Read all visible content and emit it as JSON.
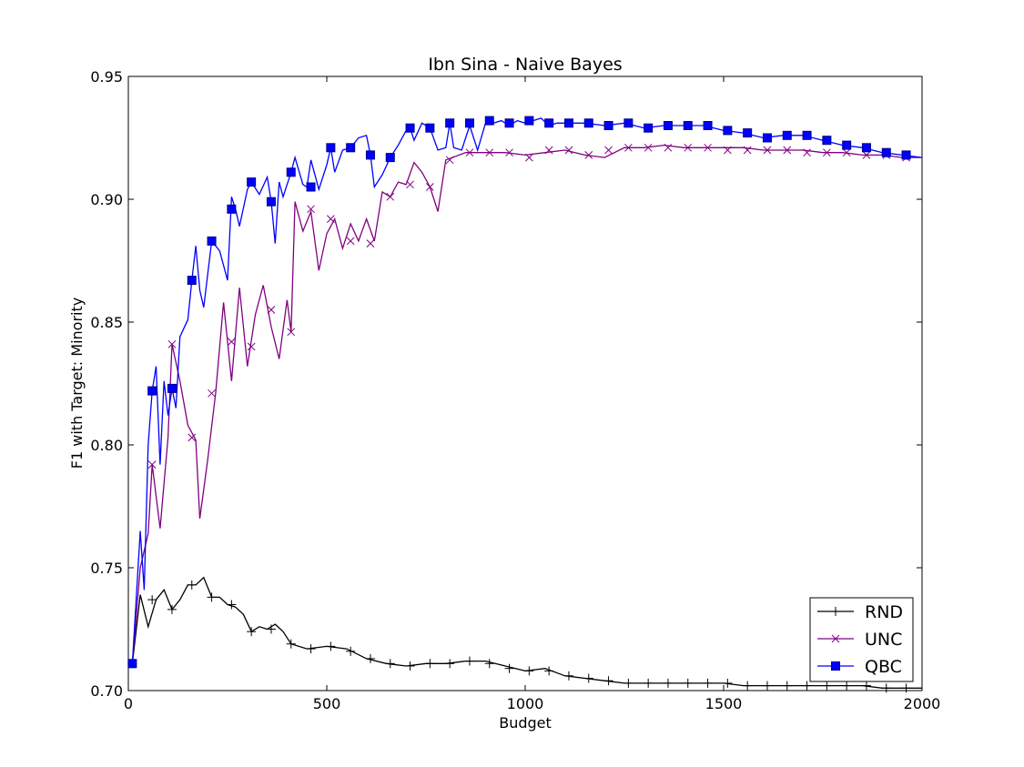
{
  "chart_data": {
    "type": "line",
    "title": "Ibn Sina - Naive Bayes",
    "xlabel": "Budget",
    "ylabel": "F1 with Target: Minority",
    "xlim": [
      0,
      2000
    ],
    "ylim": [
      0.7,
      0.95
    ],
    "xticks": [
      0,
      500,
      1000,
      1500,
      2000
    ],
    "xtick_labels": [
      "0",
      "500",
      "1000",
      "1500",
      "2000"
    ],
    "yticks": [
      0.7,
      0.75,
      0.8,
      0.85,
      0.9,
      0.95
    ],
    "ytick_labels": [
      "0.70",
      "0.75",
      "0.80",
      "0.85",
      "0.90",
      "0.95"
    ],
    "grid": false,
    "legend_position": "lower-right",
    "series": [
      {
        "name": "RND",
        "color": "#000000",
        "marker": "plus",
        "x": [
          10,
          30,
          50,
          70,
          90,
          110,
          130,
          150,
          170,
          190,
          210,
          230,
          250,
          270,
          290,
          310,
          330,
          350,
          370,
          390,
          410,
          450,
          500,
          550,
          600,
          650,
          700,
          750,
          800,
          850,
          900,
          950,
          1000,
          1050,
          1100,
          1150,
          1200,
          1250,
          1300,
          1350,
          1400,
          1450,
          1500,
          1550,
          1600,
          1650,
          1700,
          1750,
          1800,
          1850,
          1900,
          1950,
          2000
        ],
        "y": [
          0.711,
          0.739,
          0.726,
          0.737,
          0.741,
          0.733,
          0.737,
          0.743,
          0.743,
          0.746,
          0.738,
          0.738,
          0.735,
          0.734,
          0.731,
          0.724,
          0.726,
          0.725,
          0.727,
          0.724,
          0.719,
          0.717,
          0.718,
          0.717,
          0.713,
          0.711,
          0.71,
          0.711,
          0.711,
          0.712,
          0.712,
          0.71,
          0.708,
          0.709,
          0.706,
          0.705,
          0.704,
          0.703,
          0.703,
          0.703,
          0.703,
          0.703,
          0.703,
          0.702,
          0.702,
          0.702,
          0.702,
          0.702,
          0.702,
          0.702,
          0.701,
          0.701,
          0.701
        ],
        "marker_x": [
          10,
          60,
          110,
          160,
          210,
          260,
          310,
          360,
          410,
          460,
          510,
          560,
          610,
          660,
          710,
          760,
          810,
          860,
          910,
          960,
          1010,
          1060,
          1110,
          1160,
          1210,
          1260,
          1310,
          1360,
          1410,
          1460,
          1510,
          1560,
          1610,
          1660,
          1710,
          1760,
          1810,
          1860,
          1910,
          1960
        ],
        "marker_y": [
          0.711,
          0.737,
          0.733,
          0.743,
          0.738,
          0.735,
          0.724,
          0.725,
          0.719,
          0.717,
          0.718,
          0.716,
          0.713,
          0.711,
          0.71,
          0.711,
          0.711,
          0.712,
          0.711,
          0.709,
          0.708,
          0.708,
          0.706,
          0.705,
          0.704,
          0.703,
          0.703,
          0.703,
          0.703,
          0.703,
          0.703,
          0.702,
          0.702,
          0.702,
          0.702,
          0.702,
          0.702,
          0.702,
          0.701,
          0.701
        ]
      },
      {
        "name": "UNC",
        "color": "#800080",
        "marker": "x",
        "x": [
          10,
          30,
          50,
          60,
          80,
          100,
          110,
          130,
          150,
          170,
          180,
          200,
          220,
          240,
          260,
          280,
          300,
          320,
          340,
          360,
          380,
          400,
          410,
          420,
          440,
          460,
          480,
          500,
          520,
          540,
          560,
          580,
          600,
          620,
          640,
          660,
          680,
          700,
          720,
          740,
          760,
          780,
          800,
          850,
          900,
          950,
          1000,
          1050,
          1100,
          1150,
          1200,
          1250,
          1300,
          1350,
          1400,
          1450,
          1500,
          1550,
          1600,
          1650,
          1700,
          1750,
          1800,
          1850,
          1900,
          1950,
          2000
        ],
        "y": [
          0.711,
          0.75,
          0.764,
          0.792,
          0.766,
          0.803,
          0.841,
          0.826,
          0.808,
          0.802,
          0.77,
          0.794,
          0.821,
          0.858,
          0.826,
          0.864,
          0.832,
          0.853,
          0.865,
          0.848,
          0.835,
          0.859,
          0.846,
          0.899,
          0.887,
          0.895,
          0.871,
          0.886,
          0.892,
          0.88,
          0.89,
          0.883,
          0.892,
          0.883,
          0.903,
          0.901,
          0.907,
          0.906,
          0.915,
          0.911,
          0.905,
          0.895,
          0.916,
          0.919,
          0.919,
          0.919,
          0.918,
          0.919,
          0.92,
          0.918,
          0.917,
          0.921,
          0.921,
          0.922,
          0.921,
          0.921,
          0.921,
          0.921,
          0.92,
          0.92,
          0.92,
          0.919,
          0.919,
          0.918,
          0.918,
          0.917,
          0.917
        ],
        "marker_x": [
          10,
          60,
          110,
          160,
          210,
          260,
          310,
          360,
          410,
          460,
          510,
          560,
          610,
          660,
          710,
          760,
          810,
          860,
          910,
          960,
          1010,
          1060,
          1110,
          1160,
          1210,
          1260,
          1310,
          1360,
          1410,
          1460,
          1510,
          1560,
          1610,
          1660,
          1710,
          1760,
          1810,
          1860,
          1910,
          1960
        ],
        "marker_y": [
          0.711,
          0.792,
          0.841,
          0.803,
          0.821,
          0.842,
          0.84,
          0.855,
          0.846,
          0.896,
          0.892,
          0.883,
          0.882,
          0.901,
          0.906,
          0.905,
          0.916,
          0.919,
          0.919,
          0.919,
          0.917,
          0.92,
          0.92,
          0.918,
          0.92,
          0.921,
          0.921,
          0.921,
          0.921,
          0.921,
          0.92,
          0.92,
          0.92,
          0.92,
          0.919,
          0.919,
          0.919,
          0.918,
          0.918,
          0.917
        ]
      },
      {
        "name": "QBC",
        "color": "#0000ff",
        "marker": "square",
        "x": [
          10,
          30,
          40,
          50,
          60,
          70,
          80,
          90,
          100,
          110,
          120,
          130,
          150,
          160,
          170,
          180,
          190,
          210,
          230,
          250,
          260,
          270,
          280,
          300,
          310,
          330,
          350,
          360,
          370,
          380,
          390,
          410,
          420,
          440,
          450,
          460,
          480,
          500,
          510,
          520,
          540,
          560,
          580,
          600,
          610,
          620,
          640,
          660,
          680,
          700,
          710,
          720,
          740,
          760,
          780,
          800,
          810,
          820,
          840,
          860,
          880,
          900,
          910,
          920,
          940,
          960,
          980,
          1000,
          1020,
          1040,
          1060,
          1080,
          1100,
          1150,
          1200,
          1250,
          1300,
          1350,
          1400,
          1450,
          1500,
          1550,
          1600,
          1650,
          1700,
          1750,
          1800,
          1850,
          1900,
          1950,
          2000
        ],
        "y": [
          0.711,
          0.765,
          0.741,
          0.8,
          0.822,
          0.832,
          0.792,
          0.826,
          0.812,
          0.823,
          0.815,
          0.844,
          0.851,
          0.867,
          0.881,
          0.863,
          0.856,
          0.883,
          0.879,
          0.867,
          0.901,
          0.896,
          0.889,
          0.904,
          0.907,
          0.902,
          0.909,
          0.899,
          0.882,
          0.907,
          0.901,
          0.911,
          0.917,
          0.906,
          0.905,
          0.916,
          0.904,
          0.914,
          0.921,
          0.911,
          0.92,
          0.921,
          0.925,
          0.926,
          0.918,
          0.905,
          0.91,
          0.917,
          0.922,
          0.928,
          0.929,
          0.924,
          0.931,
          0.929,
          0.92,
          0.921,
          0.931,
          0.921,
          0.92,
          0.93,
          0.92,
          0.931,
          0.932,
          0.931,
          0.932,
          0.93,
          0.932,
          0.931,
          0.932,
          0.933,
          0.93,
          0.931,
          0.931,
          0.931,
          0.93,
          0.931,
          0.929,
          0.93,
          0.93,
          0.93,
          0.928,
          0.927,
          0.925,
          0.926,
          0.926,
          0.924,
          0.922,
          0.921,
          0.919,
          0.918,
          0.917
        ],
        "marker_x": [
          10,
          60,
          110,
          160,
          210,
          260,
          310,
          360,
          410,
          460,
          510,
          560,
          610,
          660,
          710,
          760,
          810,
          860,
          910,
          960,
          1010,
          1060,
          1110,
          1160,
          1210,
          1260,
          1310,
          1360,
          1410,
          1460,
          1510,
          1560,
          1610,
          1660,
          1710,
          1760,
          1810,
          1860,
          1910,
          1960
        ],
        "marker_y": [
          0.711,
          0.822,
          0.823,
          0.867,
          0.883,
          0.896,
          0.907,
          0.899,
          0.911,
          0.905,
          0.921,
          0.921,
          0.918,
          0.917,
          0.929,
          0.929,
          0.931,
          0.931,
          0.932,
          0.931,
          0.932,
          0.931,
          0.931,
          0.931,
          0.93,
          0.931,
          0.929,
          0.93,
          0.93,
          0.93,
          0.928,
          0.927,
          0.925,
          0.926,
          0.926,
          0.924,
          0.922,
          0.921,
          0.919,
          0.918
        ]
      }
    ]
  }
}
